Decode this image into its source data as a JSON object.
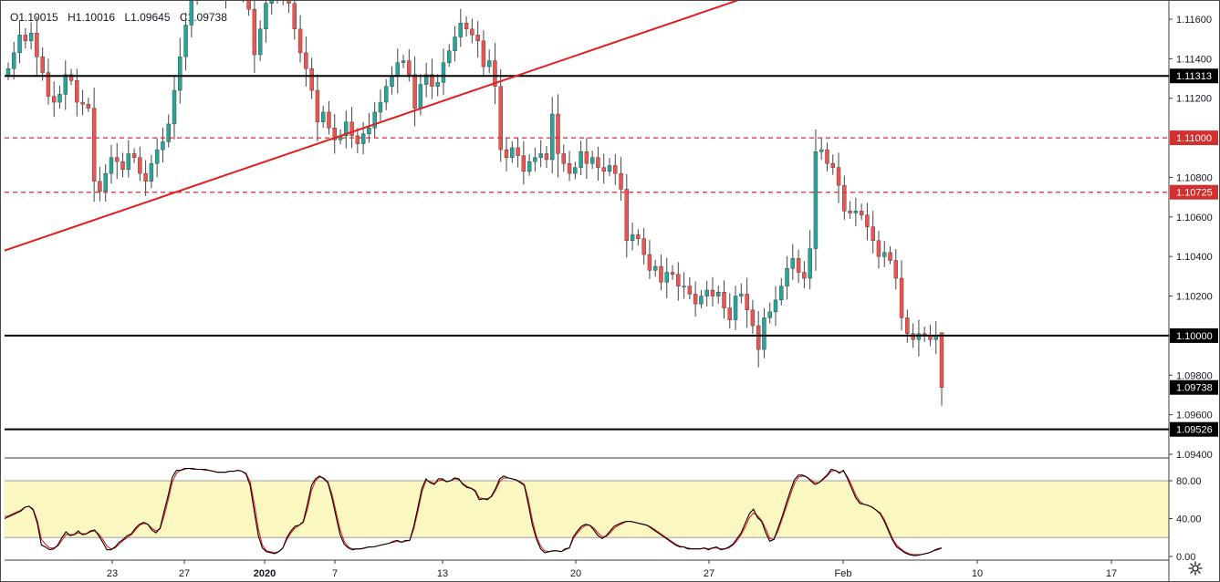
{
  "ohlc": {
    "open": "O1.10015",
    "high": "H1.10016",
    "low": "L1.09645",
    "close": "C1.09738"
  },
  "colors": {
    "up_candle": "#26a69a",
    "down_candle": "#ef5350",
    "candle_wick": "#444444",
    "trendline": "#e41e1e",
    "support_line": "#000000",
    "dashed_level": "#d32f2f",
    "stoch_k": "#000000",
    "stoch_d": "#e41e1e",
    "stoch_band": "#fbf7c1"
  },
  "icons": {
    "settings": "gear-icon"
  },
  "chart_data": [
    {
      "type": "candlestick",
      "title": "",
      "ylim": [
        1.0938,
        1.1172
      ],
      "price_ticks": [
        "1.11600",
        "1.11400",
        "1.11200",
        "1.10800",
        "1.10600",
        "1.10400",
        "1.10200",
        "1.09800",
        "1.09600",
        "1.09400"
      ],
      "price_tick_values": [
        1.116,
        1.114,
        1.112,
        1.108,
        1.106,
        1.104,
        1.102,
        1.098,
        1.096,
        1.094
      ],
      "date_ticks": [
        "23",
        "27",
        "2020",
        "7",
        "13",
        "20",
        "27",
        "Feb",
        "10",
        "17"
      ],
      "closes": [
        1.1135,
        1.1143,
        1.1152,
        1.1149,
        1.1153,
        1.1141,
        1.1133,
        1.1121,
        1.1118,
        1.1122,
        1.1132,
        1.1129,
        1.1118,
        1.1117,
        1.1115,
        1.1078,
        1.1073,
        1.1082,
        1.109,
        1.1088,
        1.1084,
        1.1092,
        1.109,
        1.1082,
        1.1078,
        1.1087,
        1.1094,
        1.1098,
        1.1107,
        1.1124,
        1.1141,
        1.1157,
        1.1171,
        1.1175,
        1.1177,
        1.1176,
        1.1174,
        1.1175,
        1.1173,
        1.1176,
        1.1177,
        1.1175,
        1.1165,
        1.1142,
        1.1155,
        1.1168,
        1.1175,
        1.1172,
        1.1177,
        1.1168,
        1.1155,
        1.1143,
        1.1135,
        1.1124,
        1.1108,
        1.1113,
        1.1105,
        1.1099,
        1.1101,
        1.1108,
        1.1101,
        1.1097,
        1.1102,
        1.1105,
        1.1113,
        1.1118,
        1.1126,
        1.1131,
        1.1138,
        1.1139,
        1.1132,
        1.1115,
        1.1127,
        1.1132,
        1.1126,
        1.1128,
        1.1138,
        1.1144,
        1.1151,
        1.1158,
        1.1155,
        1.1152,
        1.1149,
        1.1136,
        1.1139,
        1.1126,
        1.1094,
        1.109,
        1.1095,
        1.1091,
        1.1083,
        1.1088,
        1.109,
        1.1092,
        1.1089,
        1.1112,
        1.1092,
        1.1087,
        1.1082,
        1.1085,
        1.1093,
        1.1087,
        1.109,
        1.1085,
        1.1083,
        1.1086,
        1.1082,
        1.1074,
        1.1048,
        1.1051,
        1.1049,
        1.1041,
        1.1033,
        1.1035,
        1.1027,
        1.1032,
        1.1031,
        1.1025,
        1.1025,
        1.1021,
        1.1016,
        1.102,
        1.1023,
        1.102,
        1.1022,
        1.1014,
        1.1008,
        1.102,
        1.1021,
        1.1013,
        1.1005,
        1.0993,
        1.1009,
        1.1012,
        1.1018,
        1.1025,
        1.1034,
        1.1039,
        1.1032,
        1.1029,
        1.1044,
        1.1093,
        1.1094,
        1.1087,
        1.1085,
        1.1076,
        1.1063,
        1.1062,
        1.1063,
        1.1061,
        1.1055,
        1.1048,
        1.104,
        1.1042,
        1.1038,
        1.1029,
        1.1009,
        1.1001,
        1.0998,
        1.1001,
        1.1,
        1.0998,
        1.1,
        1.0974
      ],
      "last_candle": {
        "open": 1.10015,
        "high": 1.10016,
        "low": 1.09645,
        "close": 1.09738
      },
      "trendline": {
        "from": [
          0,
          1.1043
        ],
        "to": [
          134,
          1.1177
        ],
        "label": ""
      }
    },
    {
      "type": "line",
      "title": "",
      "series": [
        {
          "values": [
            40,
            42,
            44,
            46,
            48,
            52,
            53,
            49,
            35,
            12,
            10,
            7,
            8,
            12,
            20,
            26,
            22,
            23,
            27,
            23,
            24,
            27,
            28,
            22,
            15,
            7,
            7,
            10,
            15,
            18,
            22,
            24,
            30,
            34,
            36,
            34,
            28,
            25,
            30,
            48,
            65,
            84,
            91,
            91,
            93,
            93,
            93,
            92,
            92,
            92,
            91,
            90,
            89,
            89,
            89,
            90,
            90,
            91,
            90,
            87,
            75,
            48,
            22,
            9,
            5,
            4,
            3,
            5,
            9,
            20,
            27,
            32,
            33,
            37,
            55,
            75,
            82,
            85,
            82,
            78,
            62,
            42,
            23,
            13,
            9,
            7,
            8,
            8,
            9,
            10,
            10,
            11,
            12,
            13,
            14,
            16,
            17,
            15,
            17,
            17,
            32,
            52,
            72,
            82,
            78,
            76,
            82,
            82,
            79,
            80,
            83,
            82,
            76,
            73,
            72,
            69,
            60,
            61,
            60,
            64,
            72,
            82,
            85,
            83,
            82,
            81,
            78,
            75,
            55,
            33,
            18,
            8,
            4,
            5,
            6,
            6,
            5,
            8,
            9,
            21,
            27,
            32,
            34,
            33,
            28,
            22,
            19,
            22,
            27,
            32,
            34,
            36,
            37,
            37,
            36,
            35,
            34,
            33,
            30,
            27,
            24,
            21,
            18,
            15,
            12,
            10,
            10,
            8,
            8,
            8,
            8,
            9,
            7,
            9,
            10,
            7,
            8,
            10,
            13,
            19,
            25,
            35,
            45,
            50,
            41,
            37,
            25,
            16,
            18,
            30,
            42,
            56,
            69,
            81,
            86,
            86,
            84,
            80,
            76,
            78,
            82,
            86,
            92,
            91,
            88,
            91,
            82,
            72,
            62,
            56,
            55,
            54,
            52,
            49,
            45,
            37,
            27,
            17,
            10,
            7,
            4,
            2,
            1,
            1,
            2,
            3,
            4,
            6,
            8,
            9
          ],
          "_drop_note": ""
        },
        {
          "values": [
            42,
            43,
            45,
            47,
            49,
            52,
            53,
            50,
            38,
            18,
            13,
            9,
            9,
            11,
            17,
            23,
            23,
            23,
            25,
            24,
            24,
            26,
            27,
            24,
            18,
            11,
            8,
            9,
            13,
            17,
            20,
            23,
            28,
            33,
            35,
            34,
            30,
            27,
            29,
            43,
            60,
            79,
            88,
            91,
            92,
            93,
            92,
            92,
            92,
            91,
            91,
            90,
            89,
            89,
            89,
            90,
            90,
            91,
            90,
            88,
            79,
            56,
            29,
            12,
            6,
            5,
            4,
            5,
            9,
            18,
            25,
            30,
            33,
            36,
            50,
            70,
            80,
            84,
            83,
            79,
            66,
            47,
            28,
            16,
            10,
            8,
            8,
            8,
            9,
            10,
            10,
            11,
            12,
            13,
            14,
            15,
            16,
            15,
            16,
            17,
            29,
            48,
            68,
            80,
            79,
            77,
            80,
            81,
            79,
            80,
            82,
            81,
            77,
            74,
            72,
            70,
            62,
            61,
            61,
            63,
            70,
            79,
            83,
            83,
            82,
            81,
            79,
            76,
            60,
            38,
            21,
            11,
            6,
            5,
            6,
            6,
            5,
            7,
            9,
            19,
            25,
            30,
            33,
            33,
            30,
            25,
            21,
            21,
            25,
            30,
            33,
            35,
            37,
            37,
            36,
            35,
            34,
            33,
            31,
            28,
            25,
            22,
            19,
            16,
            13,
            11,
            10,
            9,
            8,
            8,
            8,
            9,
            8,
            9,
            9,
            8,
            8,
            9,
            12,
            17,
            23,
            31,
            41,
            46,
            43,
            38,
            29,
            19,
            18,
            27,
            39,
            52,
            65,
            77,
            84,
            85,
            84,
            81,
            78,
            78,
            81,
            85,
            90,
            91,
            89,
            90,
            84,
            75,
            65,
            58,
            55,
            54,
            52,
            49,
            46,
            39,
            29,
            19,
            12,
            8,
            5,
            3,
            2,
            2,
            2,
            3,
            4,
            6,
            7,
            9
          ]
        }
      ],
      "y_ticks": [
        "80.00",
        "40.00",
        "0.00"
      ],
      "y_tick_values": [
        80,
        40,
        0
      ],
      "ylim": [
        -5,
        100
      ]
    }
  ],
  "price_levels": {
    "solid": [
      {
        "label": "1.11313",
        "value": 1.11313
      },
      {
        "label": "1.10000",
        "value": 1.1
      },
      {
        "label": "1.09526",
        "value": 1.09526
      }
    ],
    "dashed": [
      {
        "label": "1.11000",
        "value": 1.11
      },
      {
        "label": "1.10725",
        "value": 1.10725
      }
    ],
    "last_price": {
      "label": "1.09738",
      "value": 1.09738
    }
  }
}
